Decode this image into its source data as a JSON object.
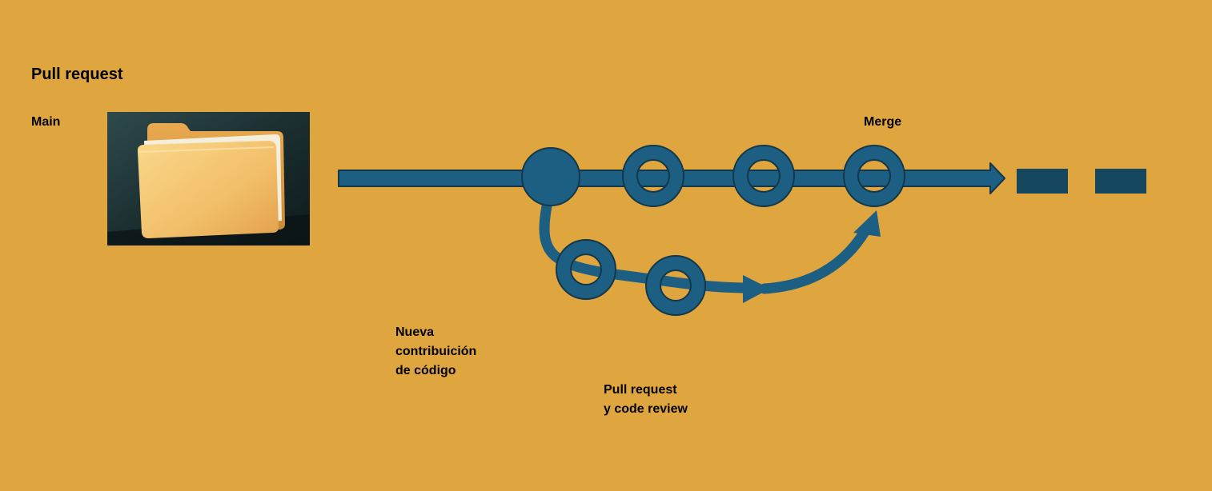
{
  "title": "Pull request",
  "main_branch_label": "Main",
  "merge_label": "Merge",
  "new_contribution_label": [
    "Nueva",
    "contribuición",
    "de código"
  ],
  "pull_request_review_label": [
    "Pull request",
    "y code review"
  ],
  "colors": {
    "background": "#DFA53E",
    "branch": "#1C5F82",
    "outline": "#14374A",
    "continuation": "#15475F"
  },
  "icons": [
    "folder-icon"
  ]
}
